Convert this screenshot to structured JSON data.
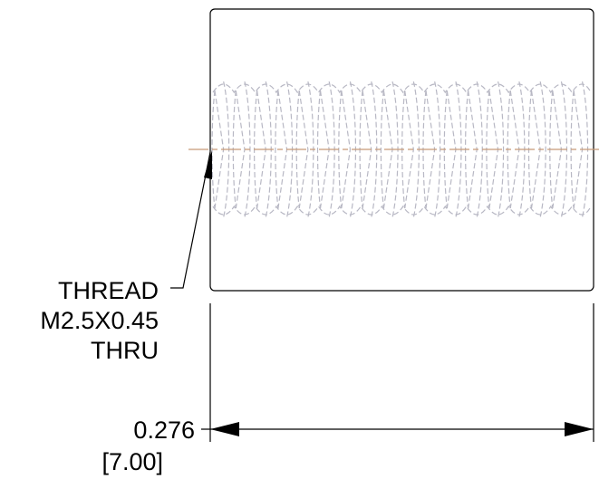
{
  "callout": {
    "line1": "THREAD",
    "line2": "M2.5X0.45",
    "line3": "THRU"
  },
  "dimension": {
    "inches": "0.276",
    "millimeters": "[7.00]"
  },
  "colors": {
    "outline": "#000000",
    "hidden_thread": "#b8b8c4",
    "centerline": "#c89a78"
  }
}
